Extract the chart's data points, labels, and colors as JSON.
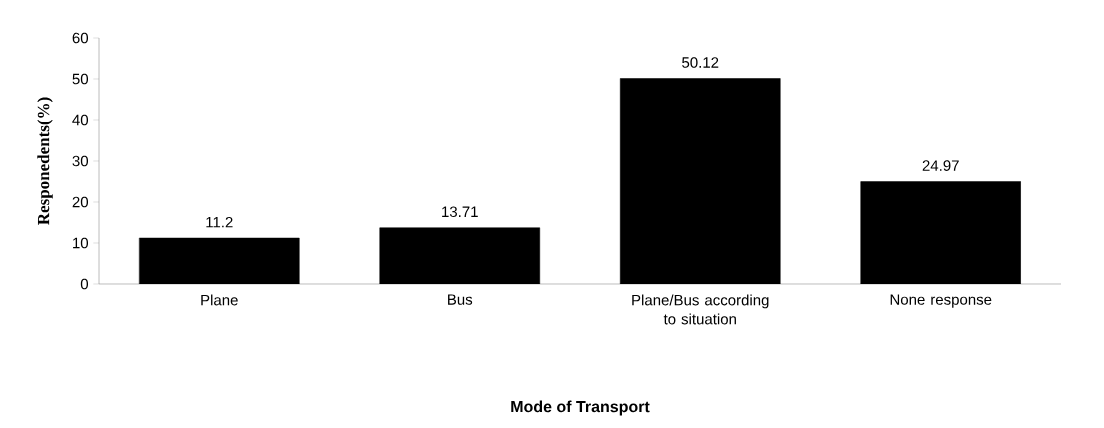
{
  "chart_data": {
    "type": "bar",
    "categories": [
      "Plane",
      "Bus",
      "Plane/Bus according to situation",
      "None response"
    ],
    "values": [
      11.2,
      13.71,
      50.12,
      24.97
    ],
    "color": "#000000",
    "xlabel": "Mode of Transport",
    "ylabel": "Responedents(%)",
    "ylim": [
      0,
      60
    ],
    "yticks": [
      0,
      10,
      20,
      30,
      40,
      50,
      60
    ],
    "data_labels": true,
    "grid": false
  }
}
